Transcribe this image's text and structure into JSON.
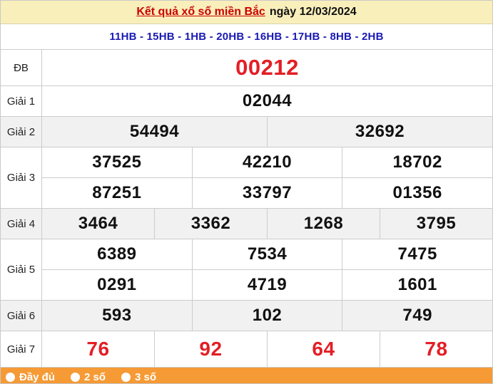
{
  "header": {
    "title_link": "Kết quả xổ số miền Bắc",
    "title_date": "ngày 12/03/2024",
    "stations": "11HB - 15HB - 1HB - 20HB - 16HB - 17HB - 8HB - 2HB"
  },
  "results": {
    "rows": [
      {
        "label": "ĐB",
        "style": "db",
        "shade": false,
        "lines": [
          [
            "00212"
          ]
        ]
      },
      {
        "label": "Giải 1",
        "style": "",
        "shade": false,
        "lines": [
          [
            "02044"
          ]
        ]
      },
      {
        "label": "Giải 2",
        "style": "",
        "shade": true,
        "lines": [
          [
            "54494",
            "32692"
          ]
        ]
      },
      {
        "label": "Giải 3",
        "style": "",
        "shade": false,
        "lines": [
          [
            "37525",
            "42210",
            "18702"
          ],
          [
            "87251",
            "33797",
            "01356"
          ]
        ]
      },
      {
        "label": "Giải 4",
        "style": "",
        "shade": true,
        "lines": [
          [
            "3464",
            "3362",
            "1268",
            "3795"
          ]
        ]
      },
      {
        "label": "Giải 5",
        "style": "",
        "shade": false,
        "lines": [
          [
            "6389",
            "7534",
            "7475"
          ],
          [
            "0291",
            "4719",
            "1601"
          ]
        ]
      },
      {
        "label": "Giải 6",
        "style": "",
        "shade": true,
        "lines": [
          [
            "593",
            "102",
            "749"
          ]
        ]
      },
      {
        "label": "Giải 7",
        "style": "red7",
        "shade": false,
        "lines": [
          [
            "76",
            "92",
            "64",
            "78"
          ]
        ]
      }
    ]
  },
  "footer": {
    "options": [
      {
        "label": "Đầy đủ"
      },
      {
        "label": "2 số"
      },
      {
        "label": "3 số"
      }
    ]
  },
  "colors": {
    "header_cream": "#f9efbb",
    "title_link_red": "#cc0000",
    "station_blue": "#1a1ab3",
    "special_red": "#e31e25",
    "shade_gray": "#f1f1f1",
    "bar_orange": "#f59a35",
    "border_gray": "#cccccc"
  }
}
